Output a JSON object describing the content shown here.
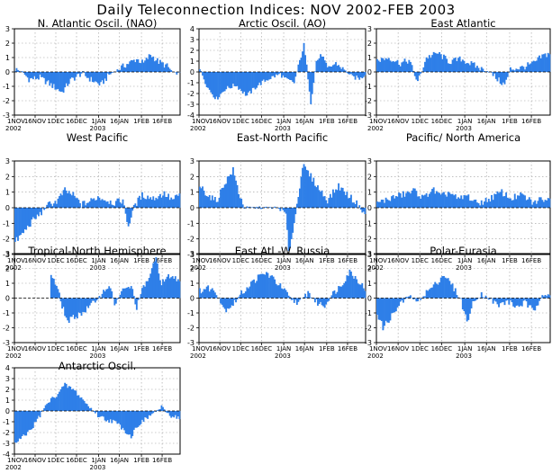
{
  "page_title": "Daily Teleconnection Indices: NOV 2002-FEB 2003",
  "colors": {
    "bar": "#2e7fe8",
    "grid": "#9a9a9a",
    "axis": "#000000",
    "background": "#ffffff"
  },
  "x_tick_labels": [
    "1NOV",
    "16NOV",
    "1DEC",
    "16DEC",
    "1JAN",
    "16JAN",
    "1FEB",
    "16FEB"
  ],
  "x_year_labels": [
    "2002",
    "2003"
  ],
  "chart_data": [
    {
      "type": "bar",
      "title": "N. Atlantic Oscil. (NAO)",
      "ylim": [
        -3,
        3
      ],
      "yticks": [
        -3,
        -2,
        -1,
        0,
        1,
        2,
        3
      ],
      "grid": true,
      "x_start": "2002-11-01",
      "x_end": "2003-02-28",
      "keyframes": [
        [
          0,
          0.2
        ],
        [
          5,
          0.0
        ],
        [
          10,
          -0.5
        ],
        [
          18,
          -0.4
        ],
        [
          26,
          -0.9
        ],
        [
          34,
          -1.4
        ],
        [
          40,
          -0.6
        ],
        [
          48,
          -0.1
        ],
        [
          56,
          -0.6
        ],
        [
          62,
          -0.9
        ],
        [
          68,
          -0.2
        ],
        [
          75,
          0.2
        ],
        [
          82,
          0.6
        ],
        [
          88,
          0.9
        ],
        [
          93,
          0.6
        ],
        [
          98,
          1.2
        ],
        [
          104,
          0.7
        ],
        [
          110,
          0.4
        ],
        [
          115,
          -0.1
        ],
        [
          119,
          -0.1
        ]
      ]
    },
    {
      "type": "bar",
      "title": "Arctic Oscil. (AO)",
      "ylim": [
        -4,
        4
      ],
      "yticks": [
        -4,
        -3,
        -2,
        -1,
        0,
        1,
        2,
        3,
        4
      ],
      "grid": true,
      "x_start": "2002-11-01",
      "x_end": "2003-02-28",
      "keyframes": [
        [
          0,
          0.3
        ],
        [
          6,
          -1.5
        ],
        [
          12,
          -2.5
        ],
        [
          18,
          -1.6
        ],
        [
          26,
          -1.2
        ],
        [
          34,
          -2.2
        ],
        [
          42,
          -1.2
        ],
        [
          50,
          -0.6
        ],
        [
          58,
          -0.2
        ],
        [
          62,
          -0.7
        ],
        [
          68,
          -1.0
        ],
        [
          72,
          1.0
        ],
        [
          75,
          2.5
        ],
        [
          78,
          -0.5
        ],
        [
          80,
          -2.8
        ],
        [
          84,
          1.0
        ],
        [
          88,
          1.6
        ],
        [
          92,
          0.3
        ],
        [
          98,
          0.8
        ],
        [
          104,
          0.2
        ],
        [
          110,
          -0.5
        ],
        [
          116,
          -0.6
        ],
        [
          119,
          -0.2
        ]
      ]
    },
    {
      "type": "bar",
      "title": "East Atlantic",
      "ylim": [
        -3,
        3
      ],
      "yticks": [
        -3,
        -2,
        -1,
        0,
        1,
        2,
        3
      ],
      "grid": true,
      "x_start": "2002-11-01",
      "x_end": "2003-02-28",
      "keyframes": [
        [
          0,
          0.8
        ],
        [
          8,
          1.0
        ],
        [
          16,
          0.6
        ],
        [
          22,
          0.8
        ],
        [
          28,
          -0.7
        ],
        [
          34,
          1.0
        ],
        [
          42,
          1.3
        ],
        [
          50,
          0.7
        ],
        [
          58,
          0.9
        ],
        [
          66,
          0.5
        ],
        [
          72,
          0.2
        ],
        [
          78,
          0.0
        ],
        [
          84,
          -0.6
        ],
        [
          88,
          -0.9
        ],
        [
          92,
          0.2
        ],
        [
          100,
          0.3
        ],
        [
          108,
          0.6
        ],
        [
          114,
          1.1
        ],
        [
          119,
          1.3
        ]
      ]
    },
    {
      "type": "bar",
      "title": "West Pacific",
      "ylim": [
        -3,
        3
      ],
      "yticks": [
        -3,
        -2,
        -1,
        0,
        1,
        2,
        3
      ],
      "grid": true,
      "x_start": "2002-11-01",
      "x_end": "2003-02-28",
      "keyframes": [
        [
          0,
          -2.2
        ],
        [
          6,
          -1.6
        ],
        [
          12,
          -0.9
        ],
        [
          18,
          -0.4
        ],
        [
          24,
          0.2
        ],
        [
          30,
          0.4
        ],
        [
          36,
          1.1
        ],
        [
          42,
          0.8
        ],
        [
          48,
          0.2
        ],
        [
          54,
          0.4
        ],
        [
          60,
          0.7
        ],
        [
          66,
          0.5
        ],
        [
          72,
          0.3
        ],
        [
          78,
          0.5
        ],
        [
          82,
          -1.2
        ],
        [
          86,
          0.1
        ],
        [
          92,
          0.8
        ],
        [
          100,
          0.6
        ],
        [
          108,
          0.9
        ],
        [
          114,
          0.5
        ],
        [
          119,
          0.8
        ]
      ]
    },
    {
      "type": "bar",
      "title": "East-North Pacific",
      "ylim": [
        -3,
        3
      ],
      "yticks": [
        -3,
        -2,
        -1,
        0,
        1,
        2,
        3
      ],
      "grid": true,
      "x_start": "2002-11-01",
      "x_end": "2003-02-28",
      "keyframes": [
        [
          0,
          1.4
        ],
        [
          6,
          0.8
        ],
        [
          12,
          0.4
        ],
        [
          18,
          1.6
        ],
        [
          24,
          2.4
        ],
        [
          28,
          1.0
        ],
        [
          32,
          0.0
        ],
        [
          40,
          0.0
        ],
        [
          48,
          0.0
        ],
        [
          56,
          0.0
        ],
        [
          62,
          -0.4
        ],
        [
          64,
          -2.9
        ],
        [
          68,
          -1.0
        ],
        [
          70,
          0.2
        ],
        [
          74,
          2.7
        ],
        [
          80,
          2.0
        ],
        [
          86,
          1.2
        ],
        [
          92,
          0.5
        ],
        [
          100,
          1.4
        ],
        [
          108,
          0.7
        ],
        [
          114,
          0.2
        ],
        [
          119,
          -0.4
        ]
      ]
    },
    {
      "type": "bar",
      "title": "Pacific/ North America",
      "ylim": [
        -3,
        3
      ],
      "yticks": [
        -3,
        -2,
        -1,
        0,
        1,
        2,
        3
      ],
      "grid": true,
      "x_start": "2002-11-01",
      "x_end": "2003-02-28",
      "keyframes": [
        [
          0,
          0.3
        ],
        [
          6,
          0.5
        ],
        [
          12,
          0.7
        ],
        [
          20,
          0.9
        ],
        [
          26,
          1.1
        ],
        [
          32,
          0.6
        ],
        [
          38,
          1.2
        ],
        [
          44,
          0.7
        ],
        [
          50,
          1.0
        ],
        [
          56,
          0.5
        ],
        [
          62,
          0.8
        ],
        [
          68,
          0.3
        ],
        [
          74,
          0.4
        ],
        [
          80,
          0.7
        ],
        [
          86,
          1.0
        ],
        [
          92,
          0.6
        ],
        [
          100,
          0.8
        ],
        [
          108,
          0.3
        ],
        [
          114,
          0.6
        ],
        [
          119,
          0.5
        ]
      ]
    },
    {
      "type": "bar",
      "title": "Tropical-North Hemisphere",
      "ylim": [
        -3,
        3
      ],
      "yticks": [
        -3,
        -2,
        -1,
        0,
        1,
        2,
        3
      ],
      "grid": true,
      "x_start": "2002-11-01",
      "x_end": "2003-02-28",
      "keyframes": [
        [
          26,
          1.6
        ],
        [
          30,
          0.8
        ],
        [
          34,
          -0.5
        ],
        [
          38,
          -1.6
        ],
        [
          44,
          -1.2
        ],
        [
          50,
          -0.9
        ],
        [
          56,
          -0.4
        ],
        [
          62,
          0.2
        ],
        [
          68,
          0.9
        ],
        [
          72,
          -0.4
        ],
        [
          78,
          0.5
        ],
        [
          84,
          0.8
        ],
        [
          88,
          -0.6
        ],
        [
          92,
          0.5
        ],
        [
          98,
          1.6
        ],
        [
          102,
          2.7
        ],
        [
          106,
          1.0
        ],
        [
          112,
          1.5
        ],
        [
          119,
          1.2
        ]
      ]
    },
    {
      "type": "bar",
      "title": "East Atl.-W. Russia",
      "ylim": [
        -3,
        3
      ],
      "yticks": [
        -3,
        -2,
        -1,
        0,
        1,
        2,
        3
      ],
      "grid": true,
      "x_start": "2002-11-01",
      "x_end": "2003-02-28",
      "keyframes": [
        [
          0,
          0.5
        ],
        [
          6,
          0.7
        ],
        [
          12,
          0.4
        ],
        [
          18,
          -0.8
        ],
        [
          24,
          -0.4
        ],
        [
          30,
          0.3
        ],
        [
          36,
          0.9
        ],
        [
          42,
          1.4
        ],
        [
          48,
          1.7
        ],
        [
          54,
          1.2
        ],
        [
          60,
          0.6
        ],
        [
          66,
          -0.1
        ],
        [
          72,
          -0.3
        ],
        [
          78,
          0.4
        ],
        [
          84,
          -0.3
        ],
        [
          90,
          -0.5
        ],
        [
          96,
          0.3
        ],
        [
          102,
          0.9
        ],
        [
          108,
          1.8
        ],
        [
          114,
          1.2
        ],
        [
          119,
          0.6
        ]
      ]
    },
    {
      "type": "bar",
      "title": "Polar-Eurasia",
      "ylim": [
        -3,
        3
      ],
      "yticks": [
        -3,
        -2,
        -1,
        0,
        1,
        2,
        3
      ],
      "grid": true,
      "x_start": "2002-11-01",
      "x_end": "2003-02-28",
      "keyframes": [
        [
          0,
          -1.0
        ],
        [
          4,
          -2.0
        ],
        [
          10,
          -1.2
        ],
        [
          16,
          -0.4
        ],
        [
          22,
          0.2
        ],
        [
          28,
          -0.3
        ],
        [
          34,
          0.4
        ],
        [
          40,
          0.9
        ],
        [
          46,
          1.6
        ],
        [
          52,
          0.8
        ],
        [
          58,
          -0.2
        ],
        [
          62,
          -1.6
        ],
        [
          66,
          -0.4
        ],
        [
          72,
          0.3
        ],
        [
          78,
          -0.1
        ],
        [
          84,
          -0.5
        ],
        [
          90,
          -0.2
        ],
        [
          96,
          -0.6
        ],
        [
          102,
          -0.3
        ],
        [
          108,
          -0.9
        ],
        [
          114,
          0.3
        ],
        [
          119,
          0.2
        ]
      ]
    },
    {
      "type": "bar",
      "title": "Antarctic Oscil.",
      "ylim": [
        -4,
        4
      ],
      "yticks": [
        -4,
        -3,
        -2,
        -1,
        0,
        1,
        2,
        3,
        4
      ],
      "grid": true,
      "x_start": "2002-11-01",
      "x_end": "2003-02-28",
      "keyframes": [
        [
          0,
          -3.0
        ],
        [
          6,
          -2.4
        ],
        [
          12,
          -1.6
        ],
        [
          18,
          -0.4
        ],
        [
          24,
          0.8
        ],
        [
          30,
          1.5
        ],
        [
          36,
          2.4
        ],
        [
          42,
          2.0
        ],
        [
          48,
          1.2
        ],
        [
          54,
          0.3
        ],
        [
          60,
          -0.4
        ],
        [
          66,
          -0.8
        ],
        [
          72,
          -1.0
        ],
        [
          78,
          -1.6
        ],
        [
          84,
          -2.4
        ],
        [
          88,
          -1.4
        ],
        [
          94,
          -0.8
        ],
        [
          100,
          -0.2
        ],
        [
          106,
          0.3
        ],
        [
          112,
          -0.4
        ],
        [
          119,
          -0.6
        ]
      ]
    }
  ]
}
